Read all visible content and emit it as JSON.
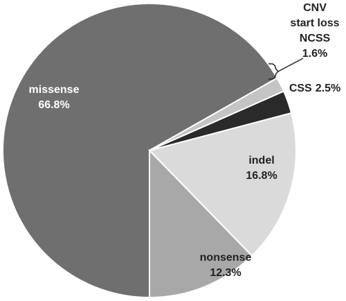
{
  "chart_data": {
    "type": "pie",
    "categories": [
      "missense",
      [
        "CNV",
        "start loss",
        "NCSS"
      ],
      "CSS",
      "indel",
      "nonsense"
    ],
    "values": [
      66.8,
      1.6,
      2.5,
      16.8,
      12.3
    ],
    "value_labels": [
      "66.8%",
      "1.6%",
      "2.5%",
      "16.8%",
      "12.3%"
    ],
    "colors": [
      "#6f6f6f",
      "#c4c4c4",
      "#2a2a2a",
      "#dadada",
      "#a8a8a8"
    ]
  }
}
